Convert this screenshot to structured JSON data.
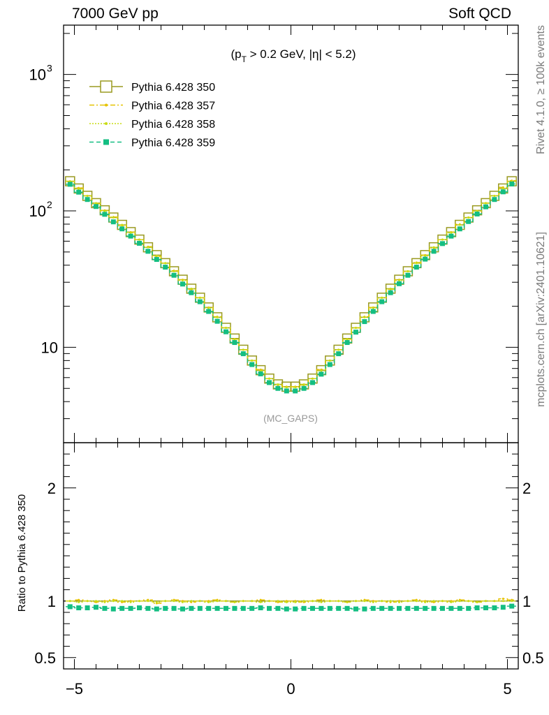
{
  "header": {
    "left": "7000 GeV pp",
    "right": "Soft QCD",
    "side_top": "Rivet 4.1.0, ≥ 100k events",
    "side_bottom": "mcplots.cern.ch [arXiv:2401.10621]"
  },
  "cut_label": "(p_T > 0.2 GeV, |η| < 5.2)",
  "watermark": "(MC_GAPS)",
  "ratio_ylabel": "Ratio to Pythia 6.428 350",
  "legend": [
    {
      "name": "Pythia 6.428 350",
      "color": "#9a9a20",
      "style": "solid",
      "marker": "open-square"
    },
    {
      "name": "Pythia 6.428 357",
      "color": "#e6c200",
      "style": "dashdot",
      "marker": "dot"
    },
    {
      "name": "Pythia 6.428 358",
      "color": "#c8dc14",
      "style": "dotted",
      "marker": "dot"
    },
    {
      "name": "Pythia 6.428 359",
      "color": "#14be82",
      "style": "dashed",
      "marker": "filled-square"
    }
  ],
  "chart_data": {
    "type": "line",
    "main": {
      "yscale": "log",
      "xlim": [
        -5.25,
        5.25
      ],
      "ylim": [
        2.0,
        2300
      ],
      "ytick_labels": [
        "10",
        "10^2",
        "10^3"
      ],
      "xtick_labels": [
        "−5",
        "0",
        "5"
      ]
    },
    "ratio": {
      "ylim": [
        0.4,
        2.4
      ],
      "ytick_labels": [
        "0.5",
        "1",
        "2"
      ]
    },
    "x": [
      -5.1,
      -4.9,
      -4.7,
      -4.5,
      -4.3,
      -4.1,
      -3.9,
      -3.7,
      -3.5,
      -3.3,
      -3.1,
      -2.9,
      -2.7,
      -2.5,
      -2.3,
      -2.1,
      -1.9,
      -1.7,
      -1.5,
      -1.3,
      -1.1,
      -0.9,
      -0.7,
      -0.5,
      -0.3,
      -0.1,
      0.1,
      0.3,
      0.5,
      0.7,
      0.9,
      1.1,
      1.3,
      1.5,
      1.7,
      1.9,
      2.1,
      2.3,
      2.5,
      2.7,
      2.9,
      3.1,
      3.3,
      3.5,
      3.7,
      3.9,
      4.1,
      4.3,
      4.5,
      4.7,
      4.9,
      5.1
    ],
    "series": [
      {
        "name": "Pythia 6.428 350",
        "values": [
          165,
          146,
          129,
          114,
          101,
          89.4,
          79.0,
          69.9,
          61.6,
          54.1,
          47.4,
          41.4,
          36.1,
          31.3,
          26.9,
          23.1,
          19.6,
          16.6,
          13.9,
          11.6,
          9.6,
          8.0,
          6.8,
          5.9,
          5.35,
          5.15,
          5.15,
          5.35,
          5.9,
          6.8,
          8.0,
          9.6,
          11.6,
          13.9,
          16.6,
          19.6,
          23.1,
          26.9,
          31.3,
          36.1,
          41.4,
          47.4,
          54.1,
          61.6,
          69.9,
          79.0,
          89.4,
          101,
          114,
          129,
          146,
          165
        ]
      },
      {
        "name": "Pythia 6.428 357",
        "ratio": [
          1.0,
          1.01,
          1.0,
          0.99,
          1.0,
          1.01,
          0.99,
          1.0,
          1.0,
          1.01,
          0.98,
          1.0,
          1.01,
          1.0,
          0.99,
          1.0,
          1.0,
          1.01,
          1.0,
          0.99,
          1.0,
          1.0,
          1.01,
          1.0,
          0.99,
          1.0,
          1.0,
          0.99,
          1.0,
          1.01,
          1.0,
          1.0,
          0.99,
          1.0,
          1.01,
          1.0,
          1.0,
          0.99,
          1.0,
          1.0,
          1.01,
          1.0,
          0.99,
          1.0,
          1.0,
          1.01,
          1.0,
          0.99,
          1.0,
          1.0,
          1.02,
          1.01
        ]
      },
      {
        "name": "Pythia 6.428 358",
        "ratio": [
          1.0,
          0.99,
          1.0,
          1.0,
          0.99,
          1.0,
          1.0,
          0.99,
          1.0,
          1.0,
          0.99,
          1.0,
          1.0,
          0.99,
          1.0,
          1.0,
          0.99,
          1.0,
          1.0,
          0.99,
          1.0,
          1.0,
          0.99,
          1.0,
          1.0,
          0.99,
          0.99,
          1.0,
          1.0,
          0.99,
          1.0,
          1.0,
          0.99,
          1.0,
          1.0,
          0.99,
          1.0,
          1.0,
          0.99,
          1.0,
          1.0,
          0.99,
          1.0,
          1.0,
          0.99,
          1.0,
          1.0,
          0.99,
          1.0,
          1.0,
          1.0,
          1.0
        ]
      },
      {
        "name": "Pythia 6.428 359",
        "ratio": [
          0.95,
          0.94,
          0.94,
          0.945,
          0.935,
          0.93,
          0.935,
          0.935,
          0.94,
          0.935,
          0.93,
          0.935,
          0.935,
          0.93,
          0.935,
          0.935,
          0.935,
          0.935,
          0.935,
          0.935,
          0.935,
          0.935,
          0.94,
          0.935,
          0.935,
          0.93,
          0.93,
          0.935,
          0.935,
          0.935,
          0.935,
          0.935,
          0.935,
          0.93,
          0.93,
          0.935,
          0.935,
          0.935,
          0.935,
          0.935,
          0.935,
          0.935,
          0.935,
          0.935,
          0.935,
          0.935,
          0.935,
          0.94,
          0.94,
          0.94,
          0.945,
          0.955
        ]
      }
    ]
  }
}
